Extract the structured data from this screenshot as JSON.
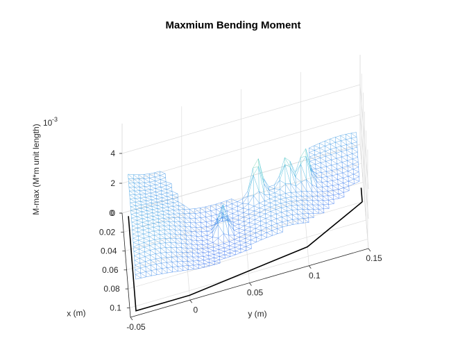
{
  "chart_data": {
    "type": "surface-mesh",
    "title": "Maxmium Bending Moment",
    "xlabel": "x (m)",
    "ylabel": "y (m)",
    "zlabel": "M-max (M*m unit length)",
    "z_exponent_label": "10",
    "z_exponent_power": "-3",
    "x_ticks": [
      "0",
      "0.02",
      "0.04",
      "0.06",
      "0.08",
      "0.1"
    ],
    "y_ticks": [
      "-0.05",
      "0",
      "0.05",
      "0.1",
      "0.15"
    ],
    "z_ticks": [
      "0",
      "2",
      "4"
    ],
    "xlim": [
      0,
      0.11
    ],
    "ylim": [
      -0.05,
      0.15
    ],
    "zlim": [
      0,
      0.006
    ],
    "grid": true,
    "colors": {
      "mesh_low": "#3d4cff",
      "mesh_mid": "#49c6d8",
      "mesh_high": "#f2e94a",
      "boundary": "#000000"
    }
  }
}
